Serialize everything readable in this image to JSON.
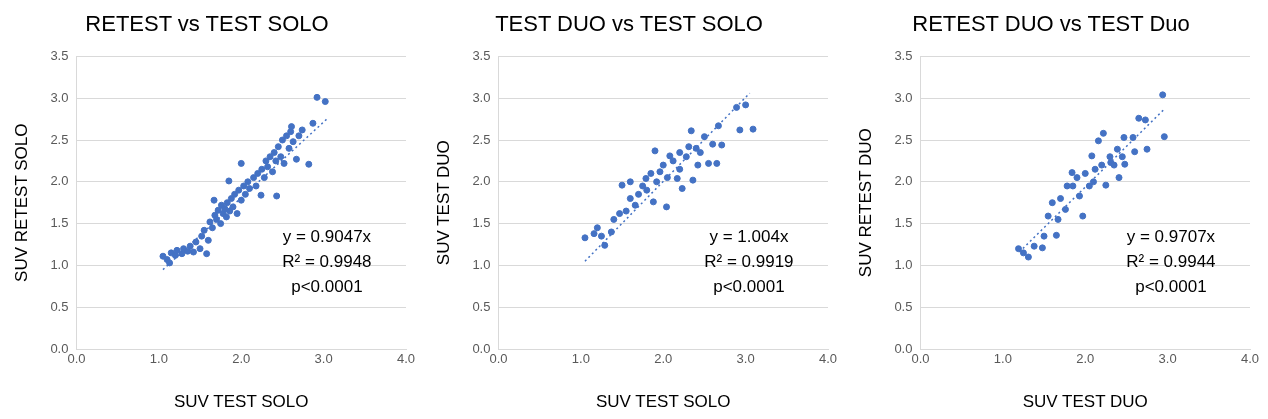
{
  "chart_data": [
    {
      "type": "scatter",
      "title": "RETEST vs TEST SOLO",
      "xlabel": "SUV TEST SOLO",
      "ylabel": "SUV RETEST SOLO",
      "grid": "y",
      "marker": "circle",
      "xlim": [
        0,
        4
      ],
      "ylim": [
        0,
        3.5
      ],
      "xticks": [
        {
          "value": 0,
          "label": "0.0"
        },
        {
          "value": 1,
          "label": "1.0"
        },
        {
          "value": 2,
          "label": "2.0"
        },
        {
          "value": 3,
          "label": "3.0"
        },
        {
          "value": 4,
          "label": "4.0"
        }
      ],
      "yticks": [
        {
          "value": 0,
          "label": "0.0"
        },
        {
          "value": 0.5,
          "label": "0.5"
        },
        {
          "value": 1,
          "label": "1.0"
        },
        {
          "value": 1.5,
          "label": "1.5"
        },
        {
          "value": 2,
          "label": "2.0"
        },
        {
          "value": 2.5,
          "label": "2.5"
        },
        {
          "value": 3,
          "label": "3.0"
        },
        {
          "value": 3.5,
          "label": "3.5"
        }
      ],
      "annotations": [
        "y = 0.9047x",
        "R² = 0.9948",
        "p<0.0001"
      ],
      "series": [
        {
          "type": "scatter",
          "color": "#4472c4",
          "x": [
            1.05,
            1.1,
            1.13,
            1.15,
            1.2,
            1.22,
            1.28,
            1.3,
            1.35,
            1.38,
            1.42,
            1.45,
            1.5,
            1.52,
            1.55,
            1.58,
            1.6,
            1.62,
            1.65,
            1.67,
            1.68,
            1.7,
            1.72,
            1.75,
            1.76,
            1.78,
            1.8,
            1.82,
            1.83,
            1.85,
            1.86,
            1.88,
            1.9,
            1.92,
            1.95,
            1.97,
            2.0,
            2.0,
            2.03,
            2.05,
            2.08,
            2.1,
            2.15,
            2.18,
            2.2,
            2.24,
            2.25,
            2.28,
            2.3,
            2.32,
            2.35,
            2.38,
            2.4,
            2.42,
            2.43,
            2.45,
            2.48,
            2.5,
            2.52,
            2.55,
            2.58,
            2.6,
            2.61,
            2.63,
            2.67,
            2.7,
            2.74,
            2.82,
            2.87,
            2.92,
            3.02
          ],
          "values": [
            1.11,
            1.07,
            1.03,
            1.15,
            1.12,
            1.18,
            1.14,
            1.2,
            1.17,
            1.23,
            1.16,
            1.28,
            1.2,
            1.35,
            1.42,
            1.14,
            1.3,
            1.52,
            1.45,
            1.78,
            1.6,
            1.55,
            1.66,
            1.5,
            1.72,
            1.62,
            1.68,
            1.58,
            1.75,
            2.01,
            1.65,
            1.8,
            1.7,
            1.85,
            1.62,
            1.9,
            2.22,
            1.78,
            1.95,
            1.85,
            2.0,
            1.92,
            2.05,
            1.95,
            2.1,
            1.84,
            2.15,
            2.05,
            2.25,
            2.18,
            2.3,
            2.12,
            2.35,
            2.25,
            1.83,
            2.42,
            2.3,
            2.5,
            2.22,
            2.55,
            2.4,
            2.6,
            2.66,
            2.48,
            2.27,
            2.55,
            2.62,
            2.21,
            2.7,
            3.01,
            2.96
          ]
        },
        {
          "type": "line",
          "color": "#4472c4",
          "line_style": "dotted",
          "marker": "none",
          "x": [
            1.05,
            3.05
          ],
          "values": [
            0.95,
            2.76
          ]
        }
      ]
    },
    {
      "type": "scatter",
      "title": "TEST DUO vs TEST SOLO",
      "xlabel": "SUV TEST SOLO",
      "ylabel": "SUV TEST DUO",
      "grid": "y",
      "marker": "circle",
      "xlim": [
        0,
        4
      ],
      "ylim": [
        0,
        3.5
      ],
      "xticks": [
        {
          "value": 0,
          "label": "0.0"
        },
        {
          "value": 1,
          "label": "1.0"
        },
        {
          "value": 2,
          "label": "2.0"
        },
        {
          "value": 3,
          "label": "3.0"
        },
        {
          "value": 4,
          "label": "4.0"
        }
      ],
      "yticks": [
        {
          "value": 0,
          "label": "0.0"
        },
        {
          "value": 0.5,
          "label": "0.5"
        },
        {
          "value": 1,
          "label": "1.0"
        },
        {
          "value": 1.5,
          "label": "1.5"
        },
        {
          "value": 2,
          "label": "2.0"
        },
        {
          "value": 2.5,
          "label": "2.5"
        },
        {
          "value": 3,
          "label": "3.0"
        },
        {
          "value": 3.5,
          "label": "3.5"
        }
      ],
      "annotations": [
        "y = 1.004x",
        "R² = 0.9919",
        "p<0.0001"
      ],
      "series": [
        {
          "type": "scatter",
          "color": "#4472c4",
          "x": [
            1.05,
            1.16,
            1.2,
            1.25,
            1.29,
            1.37,
            1.4,
            1.47,
            1.5,
            1.55,
            1.6,
            1.6,
            1.66,
            1.7,
            1.75,
            1.79,
            1.8,
            1.85,
            1.88,
            1.9,
            1.92,
            1.96,
            2.0,
            2.04,
            2.05,
            2.08,
            2.12,
            2.17,
            2.2,
            2.2,
            2.23,
            2.28,
            2.31,
            2.34,
            2.36,
            2.4,
            2.42,
            2.45,
            2.5,
            2.55,
            2.6,
            2.65,
            2.67,
            2.71,
            2.89,
            2.93,
            3.0,
            3.09
          ],
          "values": [
            1.33,
            1.38,
            1.45,
            1.35,
            1.24,
            1.4,
            1.55,
            1.62,
            1.96,
            1.65,
            2.0,
            1.8,
            1.72,
            1.85,
            1.95,
            2.04,
            1.9,
            2.1,
            1.76,
            2.37,
            2.0,
            2.12,
            2.2,
            1.7,
            2.05,
            2.31,
            2.25,
            2.04,
            2.15,
            2.35,
            1.92,
            2.3,
            2.42,
            2.61,
            2.02,
            2.4,
            2.2,
            2.35,
            2.54,
            2.22,
            2.45,
            2.22,
            2.67,
            2.44,
            2.89,
            2.62,
            2.92,
            2.63
          ]
        },
        {
          "type": "line",
          "color": "#4472c4",
          "line_style": "dotted",
          "marker": "none",
          "x": [
            1.05,
            3.05
          ],
          "values": [
            1.05,
            3.06
          ]
        }
      ]
    },
    {
      "type": "scatter",
      "title": "RETEST DUO vs TEST Duo",
      "xlabel": "SUV TEST DUO",
      "ylabel": "SUV RETEST DUO",
      "grid": "y",
      "marker": "circle",
      "xlim": [
        0,
        4
      ],
      "ylim": [
        0,
        3.5
      ],
      "xticks": [
        {
          "value": 0,
          "label": "0.0"
        },
        {
          "value": 1,
          "label": "1.0"
        },
        {
          "value": 2,
          "label": "2.0"
        },
        {
          "value": 3,
          "label": "3.0"
        },
        {
          "value": 4,
          "label": "4.0"
        }
      ],
      "yticks": [
        {
          "value": 0,
          "label": "0.0"
        },
        {
          "value": 0.5,
          "label": "0.5"
        },
        {
          "value": 1,
          "label": "1.0"
        },
        {
          "value": 1.5,
          "label": "1.5"
        },
        {
          "value": 2,
          "label": "2.0"
        },
        {
          "value": 2.5,
          "label": "2.5"
        },
        {
          "value": 3,
          "label": "3.0"
        },
        {
          "value": 3.5,
          "label": "3.5"
        }
      ],
      "annotations": [
        "y = 0.9707x",
        "R² = 0.9944",
        "p<0.0001"
      ],
      "series": [
        {
          "type": "scatter",
          "color": "#4472c4",
          "x": [
            1.19,
            1.25,
            1.31,
            1.38,
            1.48,
            1.5,
            1.55,
            1.6,
            1.65,
            1.67,
            1.7,
            1.76,
            1.78,
            1.84,
            1.85,
            1.9,
            1.93,
            1.97,
            2.0,
            2.05,
            2.08,
            2.1,
            2.12,
            2.16,
            2.2,
            2.22,
            2.25,
            2.3,
            2.31,
            2.35,
            2.39,
            2.41,
            2.45,
            2.47,
            2.48,
            2.58,
            2.6,
            2.65,
            2.73,
            2.75,
            2.94,
            2.96
          ],
          "values": [
            1.2,
            1.15,
            1.1,
            1.23,
            1.21,
            1.35,
            1.59,
            1.75,
            1.36,
            1.55,
            1.8,
            1.67,
            1.95,
            2.11,
            1.95,
            2.05,
            1.83,
            1.59,
            2.1,
            1.95,
            2.31,
            2.0,
            2.15,
            2.49,
            2.2,
            2.58,
            1.96,
            2.3,
            2.23,
            2.2,
            2.39,
            2.05,
            2.3,
            2.53,
            2.21,
            2.53,
            2.36,
            2.76,
            2.74,
            2.39,
            3.04,
            2.54
          ]
        },
        {
          "type": "line",
          "color": "#4472c4",
          "line_style": "dotted",
          "marker": "none",
          "x": [
            1.2,
            2.95
          ],
          "values": [
            1.16,
            2.86
          ]
        }
      ]
    }
  ]
}
